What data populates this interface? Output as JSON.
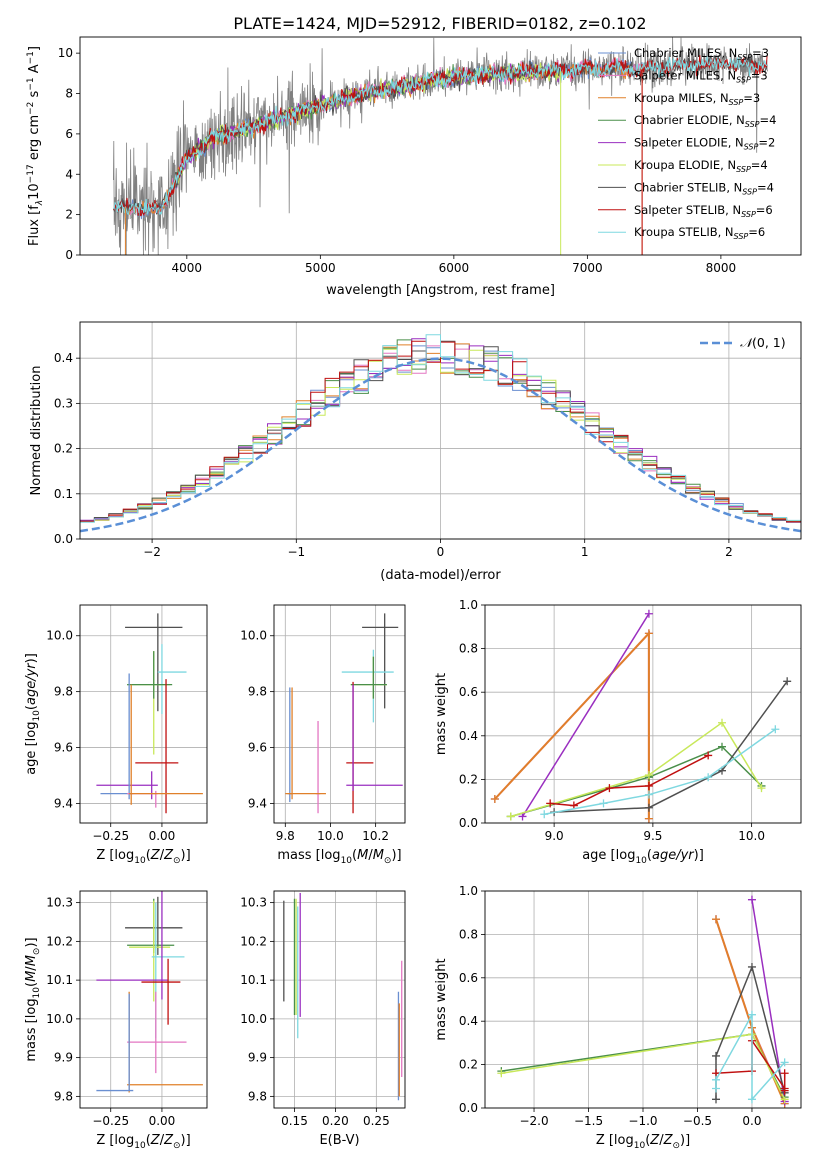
{
  "figure": {
    "title": "PLATE=1424, MJD=52912, FIBERID=0182, z=0.102"
  },
  "colors": {
    "spectrum_data": "#808080",
    "chabrier_miles": "#6a8fd1",
    "salpeter_miles": "#e377c2",
    "kroupa_miles": "#e0802a",
    "chabrier_elodie": "#4a8f4a",
    "salpeter_elodie": "#9a2fc0",
    "kroupa_elodie": "#c8e85a",
    "chabrier_stelib": "#505050",
    "salpeter_stelib": "#c01010",
    "kroupa_stelib": "#7fd8e0",
    "normal_curve": "#5a8fd6",
    "grid": "#b0b0b0"
  },
  "chart_data": [
    {
      "id": "spectrum",
      "type": "line",
      "title": "PLATE=1424, MJD=52912, FIBERID=0182, z=0.102",
      "xlabel": "wavelength [Angstrom, rest frame]",
      "ylabel": "Flux [f$_\\lambda$10$^{-17}$ erg cm$^{-2}$ s$^{-1}$ A$^{-1}$]",
      "xlim": [
        3200,
        8600
      ],
      "ylim": [
        0,
        10.8
      ],
      "xticks": [
        4000,
        5000,
        6000,
        7000,
        8000
      ],
      "yticks": [
        0,
        2,
        4,
        6,
        8,
        10
      ],
      "grid": false,
      "legend_position": "right",
      "legend": [
        {
          "label": "Chabrier MILES, N",
          "sub": "SSP",
          "tail": "=3",
          "key": "chabrier_miles"
        },
        {
          "label": "Salpeter MILES, N",
          "sub": "SSP",
          "tail": "=3",
          "key": "salpeter_miles"
        },
        {
          "label": "Kroupa MILES, N",
          "sub": "SSP",
          "tail": "=3",
          "key": "kroupa_miles"
        },
        {
          "label": "Chabrier ELODIE, N",
          "sub": "SSP",
          "tail": "=4",
          "key": "chabrier_elodie"
        },
        {
          "label": "Salpeter ELODIE, N",
          "sub": "SSP",
          "tail": "=2",
          "key": "salpeter_elodie"
        },
        {
          "label": "Kroupa ELODIE, N",
          "sub": "SSP",
          "tail": "=4",
          "key": "kroupa_elodie"
        },
        {
          "label": "Chabrier STELIB, N",
          "sub": "SSP",
          "tail": "=4",
          "key": "chabrier_stelib"
        },
        {
          "label": "Salpeter STELIB, N",
          "sub": "SSP",
          "tail": "=6",
          "key": "salpeter_stelib"
        },
        {
          "label": "Kroupa STELIB, N",
          "sub": "SSP",
          "tail": "=6",
          "key": "kroupa_stelib"
        }
      ],
      "continuum_x": [
        3450,
        3600,
        3800,
        3900,
        4000,
        4200,
        4400,
        4600,
        4800,
        5000,
        5200,
        5400,
        5600,
        5800,
        6000,
        6200,
        6400,
        6600,
        6800,
        7000,
        7200,
        7400,
        7600,
        7800,
        8000,
        8200,
        8350
      ],
      "continuum_y": [
        2.3,
        2.4,
        2.2,
        3.5,
        4.8,
        5.8,
        6.2,
        6.6,
        7.0,
        7.4,
        7.8,
        8.1,
        8.3,
        8.6,
        8.8,
        8.9,
        9.0,
        9.1,
        9.1,
        9.2,
        9.3,
        9.2,
        9.3,
        9.4,
        9.5,
        9.4,
        9.4
      ]
    },
    {
      "id": "residuals",
      "type": "histogram",
      "xlabel": "(data-model)/error",
      "ylabel": "Normed distribution",
      "xlim": [
        -2.5,
        2.5
      ],
      "ylim": [
        0,
        0.48
      ],
      "xticks": [
        -2,
        -1,
        0,
        1,
        2
      ],
      "yticks": [
        0.0,
        0.1,
        0.2,
        0.3,
        0.4
      ],
      "grid": true,
      "legend_position": "top-right",
      "legend_label": "N(0,1)",
      "curve": "normal(0,1)",
      "bin_width": 0.1
    },
    {
      "id": "z-age",
      "type": "errorbar",
      "xlabel": "Z [log10(Z/Z_sun)]",
      "ylabel": "age [log10(age/yr)]",
      "xlim": [
        -0.4,
        0.22
      ],
      "ylim": [
        9.33,
        10.11
      ],
      "xticks": [
        -0.25,
        0.0
      ],
      "yticks": [
        9.4,
        9.6,
        9.8,
        10.0
      ],
      "grid": true,
      "points": [
        {
          "key": "chabrier_stelib",
          "x": -0.02,
          "xerr": [
            0.16,
            0.12
          ],
          "y": 10.03,
          "yerr": [
            0.3,
            0.05
          ]
        },
        {
          "key": "kroupa_stelib",
          "x": 0.0,
          "xerr": [
            0.02,
            0.12
          ],
          "y": 9.87,
          "yerr": [
            0.15,
            0.1
          ]
        },
        {
          "key": "kroupa_elodie",
          "x": -0.04,
          "xerr": [
            0.13,
            0.08
          ],
          "y": 9.825,
          "yerr": [
            0.25,
            0.12
          ]
        },
        {
          "key": "chabrier_elodie",
          "x": -0.04,
          "xerr": [
            0.13,
            0.09
          ],
          "y": 9.825,
          "yerr": [
            0.05,
            0.12
          ]
        },
        {
          "key": "salpeter_stelib",
          "x": 0.02,
          "xerr": [
            0.15,
            0.06
          ],
          "y": 9.545,
          "yerr": [
            0.18,
            0.3
          ]
        },
        {
          "key": "salpeter_elodie",
          "x": -0.05,
          "xerr": [
            0.27,
            0.03
          ],
          "y": 9.465,
          "yerr": [
            0.05,
            0.05
          ]
        },
        {
          "key": "chabrier_miles",
          "x": -0.16,
          "xerr": [
            0.14,
            0.02
          ],
          "y": 9.435,
          "yerr": [
            0.02,
            0.43
          ]
        },
        {
          "key": "salpeter_miles",
          "x": -0.03,
          "xerr": [
            0.14,
            0.01
          ],
          "y": 9.435,
          "yerr": [
            0.05,
            0.01
          ]
        },
        {
          "key": "kroupa_miles",
          "x": -0.15,
          "xerr": [
            0.01,
            0.35
          ],
          "y": 9.435,
          "yerr": [
            0.04,
            0.39
          ]
        }
      ]
    },
    {
      "id": "mass-age",
      "type": "errorbar",
      "xlabel": "mass [log10(M/M_sun)]",
      "ylabel": "",
      "xlim": [
        9.75,
        10.33
      ],
      "ylim": [
        9.33,
        10.11
      ],
      "xticks": [
        9.8,
        10.0,
        10.2
      ],
      "yticks": [
        9.4,
        9.6,
        9.8,
        10.0
      ],
      "grid": true,
      "points": [
        {
          "key": "chabrier_stelib",
          "x": 10.24,
          "xerr": [
            0.1,
            0.06
          ],
          "y": 10.03,
          "yerr": [
            0.29,
            0.05
          ]
        },
        {
          "key": "kroupa_stelib",
          "x": 10.19,
          "xerr": [
            0.14,
            0.09
          ],
          "y": 9.87,
          "yerr": [
            0.18,
            0.08
          ]
        },
        {
          "key": "kroupa_elodie",
          "x": 10.19,
          "xerr": [
            0.1,
            0.06
          ],
          "y": 9.825,
          "yerr": [
            0.05,
            0.1
          ]
        },
        {
          "key": "chabrier_elodie",
          "x": 10.19,
          "xerr": [
            0.1,
            0.06
          ],
          "y": 9.825,
          "yerr": [
            0.05,
            0.1
          ]
        },
        {
          "key": "salpeter_stelib",
          "x": 10.1,
          "xerr": [
            0.03,
            0.09
          ],
          "y": 9.545,
          "yerr": [
            0.18,
            0.29
          ]
        },
        {
          "key": "salpeter_elodie",
          "x": 10.1,
          "xerr": [
            0.03,
            0.22
          ],
          "y": 9.465,
          "yerr": [
            0.02,
            0.36
          ]
        },
        {
          "key": "chabrier_miles",
          "x": 9.82,
          "xerr": [
            0.01,
            0.01
          ],
          "y": 9.435,
          "yerr": [
            0.03,
            0.38
          ]
        },
        {
          "key": "salpeter_miles",
          "x": 9.945,
          "xerr": [
            0.01,
            0.01
          ],
          "y": 9.435,
          "yerr": [
            0.07,
            0.26
          ]
        },
        {
          "key": "kroupa_miles",
          "x": 9.83,
          "xerr": [
            0.03,
            0.15
          ],
          "y": 9.435,
          "yerr": [
            0.02,
            0.38
          ]
        }
      ]
    },
    {
      "id": "age-weight",
      "type": "line",
      "xlabel": "age [log10(age/yr)]",
      "ylabel": "mass weight",
      "xlim": [
        8.65,
        10.25
      ],
      "ylim": [
        0,
        1.0
      ],
      "xticks": [
        9.0,
        9.5,
        10.0
      ],
      "yticks": [
        0.0,
        0.2,
        0.4,
        0.6,
        0.8,
        1.0
      ],
      "grid": true,
      "series": [
        {
          "key": "chabrier_miles",
          "x": [
            8.7,
            9.48,
            9.48
          ],
          "y": [
            0.11,
            0.87,
            0.02
          ]
        },
        {
          "key": "salpeter_miles",
          "x": [
            8.7,
            9.48,
            9.48
          ],
          "y": [
            0.11,
            0.87,
            0.02
          ]
        },
        {
          "key": "kroupa_miles",
          "x": [
            8.7,
            9.48,
            9.48
          ],
          "y": [
            0.11,
            0.87,
            0.02
          ]
        },
        {
          "key": "chabrier_elodie",
          "x": [
            8.78,
            9.48,
            9.85,
            10.05
          ],
          "y": [
            0.03,
            0.21,
            0.35,
            0.17
          ]
        },
        {
          "key": "salpeter_elodie",
          "x": [
            8.84,
            9.48
          ],
          "y": [
            0.03,
            0.96
          ]
        },
        {
          "key": "kroupa_elodie",
          "x": [
            8.78,
            9.48,
            9.85,
            10.05
          ],
          "y": [
            0.03,
            0.22,
            0.46,
            0.16
          ]
        },
        {
          "key": "chabrier_stelib",
          "x": [
            9.0,
            9.48,
            9.85,
            10.18
          ],
          "y": [
            0.05,
            0.07,
            0.24,
            0.65
          ]
        },
        {
          "key": "salpeter_stelib",
          "x": [
            8.98,
            9.1,
            9.28,
            9.48,
            9.78
          ],
          "y": [
            0.09,
            0.08,
            0.16,
            0.17,
            0.31
          ]
        },
        {
          "key": "kroupa_stelib",
          "x": [
            8.95,
            9.25,
            9.48,
            9.78,
            10.12
          ],
          "y": [
            0.04,
            0.09,
            0.13,
            0.21,
            0.43
          ]
        }
      ]
    },
    {
      "id": "z-mass",
      "type": "errorbar",
      "xlabel": "Z [log10(Z/Z_sun)]",
      "ylabel": "mass [log10(M/M_sun)]",
      "xlim": [
        -0.4,
        0.22
      ],
      "ylim": [
        9.77,
        10.33
      ],
      "xticks": [
        -0.25,
        0.0
      ],
      "yticks": [
        9.8,
        9.9,
        10.0,
        10.1,
        10.2,
        10.3
      ],
      "grid": true,
      "points": [
        {
          "key": "chabrier_stelib",
          "x": -0.02,
          "xerr": [
            0.16,
            0.12
          ],
          "y": 10.235,
          "yerr": [
            0.07,
            0.08
          ]
        },
        {
          "key": "chabrier_elodie",
          "x": -0.04,
          "xerr": [
            0.13,
            0.1
          ],
          "y": 10.19,
          "yerr": [
            0.02,
            0.12
          ]
        },
        {
          "key": "kroupa_elodie",
          "x": -0.04,
          "xerr": [
            0.12,
            0.08
          ],
          "y": 10.185,
          "yerr": [
            0.14,
            0.12
          ]
        },
        {
          "key": "kroupa_stelib",
          "x": -0.03,
          "xerr": [
            0.02,
            0.14
          ],
          "y": 10.16,
          "yerr": [
            0.21,
            0.14
          ]
        },
        {
          "key": "salpeter_elodie",
          "x": 0.0,
          "xerr": [
            0.32,
            0.03
          ],
          "y": 10.1,
          "yerr": [
            0.05,
            0.23
          ]
        },
        {
          "key": "salpeter_stelib",
          "x": 0.03,
          "xerr": [
            0.13,
            0.06
          ],
          "y": 10.095,
          "yerr": [
            0.11,
            0.06
          ]
        },
        {
          "key": "salpeter_miles",
          "x": -0.03,
          "xerr": [
            0.14,
            0.15
          ],
          "y": 9.94,
          "yerr": [
            0.08,
            0.13
          ]
        },
        {
          "key": "kroupa_miles",
          "x": -0.16,
          "xerr": [
            0.01,
            0.36
          ],
          "y": 9.83,
          "yerr": [
            0.02,
            0.24
          ]
        },
        {
          "key": "chabrier_miles",
          "x": -0.16,
          "xerr": [
            0.16,
            0.02
          ],
          "y": 9.815,
          "yerr": [
            0.0,
            0.25
          ]
        }
      ]
    },
    {
      "id": "ebv-mass",
      "type": "errorbar",
      "xlabel": "E(B-V)",
      "ylabel": "",
      "xlim": [
        0.125,
        0.285
      ],
      "ylim": [
        9.77,
        10.33
      ],
      "xticks": [
        0.15,
        0.2,
        0.25
      ],
      "yticks": [
        9.8,
        9.9,
        10.0,
        10.1,
        10.2,
        10.3
      ],
      "grid": true,
      "points": [
        {
          "key": "chabrier_stelib",
          "x": 0.137,
          "xerr": [
            0,
            0
          ],
          "y": 10.175,
          "yerr": [
            0.13,
            0.13
          ]
        },
        {
          "key": "chabrier_elodie",
          "x": 0.15,
          "xerr": [
            0,
            0
          ],
          "y": 10.16,
          "yerr": [
            0.15,
            0.15
          ]
        },
        {
          "key": "kroupa_elodie",
          "x": 0.152,
          "xerr": [
            0,
            0
          ],
          "y": 10.16,
          "yerr": [
            0.15,
            0.15
          ]
        },
        {
          "key": "kroupa_stelib",
          "x": 0.154,
          "xerr": [
            0,
            0
          ],
          "y": 10.12,
          "yerr": [
            0.17,
            0.17
          ]
        },
        {
          "key": "salpeter_elodie",
          "x": 0.157,
          "xerr": [
            0,
            0
          ],
          "y": 10.165,
          "yerr": [
            0.16,
            0.16
          ]
        },
        {
          "key": "chabrier_miles",
          "x": 0.277,
          "xerr": [
            0,
            0
          ],
          "y": 9.93,
          "yerr": [
            0.14,
            0.14
          ]
        },
        {
          "key": "kroupa_miles",
          "x": 0.278,
          "xerr": [
            0,
            0
          ],
          "y": 9.92,
          "yerr": [
            0.12,
            0.12
          ]
        },
        {
          "key": "salpeter_miles",
          "x": 0.281,
          "xerr": [
            0,
            0
          ],
          "y": 10.0,
          "yerr": [
            0.15,
            0.15
          ]
        }
      ]
    },
    {
      "id": "z-weight",
      "type": "line",
      "xlabel": "Z [log10(Z/Z_sun)]",
      "ylabel": "mass weight",
      "xlim": [
        -2.45,
        0.45
      ],
      "ylim": [
        0,
        1.0
      ],
      "xticks": [
        -2.0,
        -1.5,
        -1.0,
        -0.5,
        0.0
      ],
      "yticks": [
        0.0,
        0.2,
        0.4,
        0.6,
        0.8,
        1.0
      ],
      "grid": true,
      "series": [
        {
          "key": "chabrier_miles",
          "x": [
            -0.33,
            0.0,
            0.3
          ],
          "y": [
            0.87,
            0.37,
            0.02
          ]
        },
        {
          "key": "salpeter_miles",
          "x": [
            -0.33,
            0.0,
            0.3
          ],
          "y": [
            0.87,
            0.37,
            0.03
          ]
        },
        {
          "key": "kroupa_miles",
          "x": [
            -0.33,
            0.0,
            0.3
          ],
          "y": [
            0.87,
            0.37,
            0.02
          ]
        },
        {
          "key": "chabrier_elodie",
          "x": [
            -2.3,
            0.0,
            0.3
          ],
          "y": [
            0.17,
            0.34,
            0.05
          ]
        },
        {
          "key": "salpeter_elodie",
          "x": [
            0.0,
            0.3
          ],
          "y": [
            0.96,
            0.03
          ]
        },
        {
          "key": "kroupa_elodie",
          "x": [
            -2.3,
            0.0,
            0.3
          ],
          "y": [
            0.16,
            0.34,
            0.04
          ]
        },
        {
          "key": "chabrier_stelib",
          "x": [
            -0.33,
            -0.33,
            0.0,
            0.3
          ],
          "y": [
            0.04,
            0.24,
            0.65,
            0.07
          ]
        },
        {
          "key": "salpeter_stelib",
          "x": [
            -0.33,
            0.0,
            0.0,
            0.3,
            0.3,
            0.3
          ],
          "y": [
            0.16,
            0.17,
            0.31,
            0.09,
            0.16,
            0.08
          ]
        },
        {
          "key": "kroupa_stelib",
          "x": [
            -0.33,
            -0.33,
            0.0,
            0.0,
            0.3
          ],
          "y": [
            0.09,
            0.13,
            0.43,
            0.04,
            0.21
          ]
        }
      ]
    }
  ]
}
